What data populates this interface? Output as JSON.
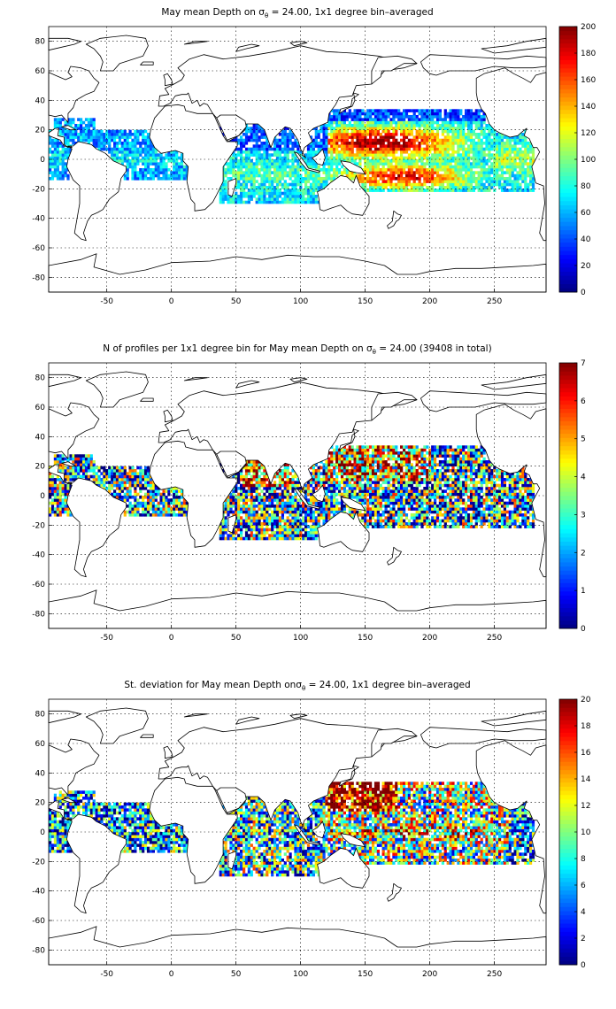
{
  "chart_data": [
    {
      "type": "heatmap",
      "title_parts": [
        "May mean Depth on ",
        "σ",
        "θ",
        " = 24.00, 1x1 degree bin–averaged"
      ],
      "x_ticks": [
        -50,
        0,
        50,
        100,
        150,
        200,
        250
      ],
      "y_ticks": [
        -80,
        -60,
        -40,
        -20,
        0,
        20,
        40,
        60,
        80
      ],
      "xlim": [
        -95,
        290
      ],
      "ylim": [
        -90,
        90
      ],
      "grid": true,
      "colorbar": {
        "min": 0,
        "max": 200,
        "ticks": [
          0,
          20,
          40,
          60,
          80,
          100,
          120,
          140,
          160,
          180,
          200
        ],
        "colormap": "jet"
      },
      "field": "depth",
      "texture": 0.25
    },
    {
      "type": "heatmap",
      "title_parts": [
        "N of profiles per 1x1 degree bin for May mean Depth on ",
        "σ",
        "θ",
        " = 24.00 (39408 in total)"
      ],
      "x_ticks": [
        -50,
        0,
        50,
        100,
        150,
        200,
        250
      ],
      "y_ticks": [
        -80,
        -60,
        -40,
        -20,
        0,
        20,
        40,
        60,
        80
      ],
      "xlim": [
        -95,
        290
      ],
      "ylim": [
        -90,
        90
      ],
      "grid": true,
      "colorbar": {
        "min": 0,
        "max": 7,
        "ticks": [
          0,
          1,
          2,
          3,
          4,
          5,
          6,
          7
        ],
        "colormap": "jet"
      },
      "field": "count",
      "texture": 1.0
    },
    {
      "type": "heatmap",
      "title_parts": [
        "St. deviation for May mean Depth on",
        "σ",
        "θ",
        " = 24.00, 1x1 degree bin–averaged"
      ],
      "x_ticks": [
        -50,
        0,
        50,
        100,
        150,
        200,
        250
      ],
      "y_ticks": [
        -80,
        -60,
        -40,
        -20,
        0,
        20,
        40,
        60,
        80
      ],
      "xlim": [
        -95,
        290
      ],
      "ylim": [
        -90,
        90
      ],
      "grid": true,
      "colorbar": {
        "min": 0,
        "max": 20,
        "ticks": [
          0,
          2,
          4,
          6,
          8,
          10,
          12,
          14,
          16,
          18,
          20
        ],
        "colormap": "jet"
      },
      "field": "stdev",
      "texture": 0.85
    }
  ]
}
